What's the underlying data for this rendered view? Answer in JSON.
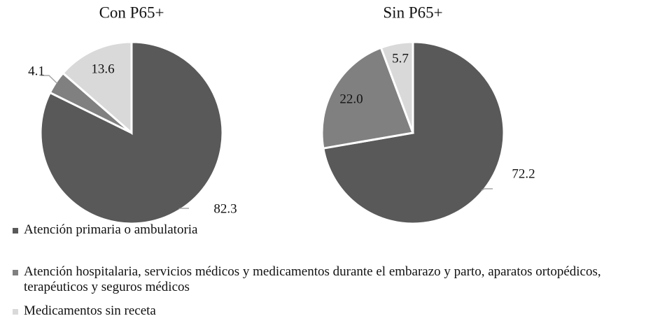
{
  "chart_data": [
    {
      "type": "pie",
      "title": "Con P65+",
      "values": [
        82.3,
        4.1,
        13.6
      ],
      "colors": [
        "#595959",
        "#808080",
        "#d9d9d9"
      ]
    },
    {
      "type": "pie",
      "title": "Sin P65+",
      "values": [
        72.2,
        22.0,
        5.7
      ],
      "value_labels": [
        "72.2",
        "22.0",
        "5.7"
      ],
      "colors": [
        "#595959",
        "#808080",
        "#d9d9d9"
      ]
    }
  ],
  "legend": {
    "labels": [
      "Atención primaria o ambulatoria",
      "Atención hospitalaria, servicios médicos y medicamentos durante el embarazo y parto, aparatos ortopédicos, terapéuticos y seguros médicos",
      "Medicamentos sin receta"
    ]
  }
}
